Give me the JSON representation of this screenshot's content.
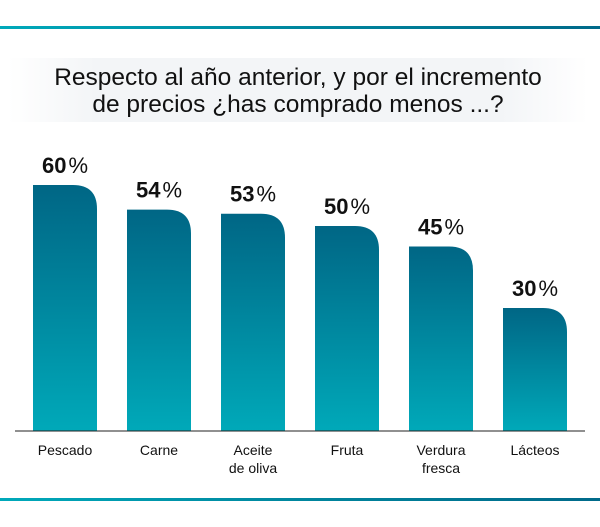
{
  "chart_data": {
    "type": "bar",
    "title": "Respecto al año anterior, y por el incremento\nde precios ¿has comprado menos ...?",
    "categories": [
      "Pescado",
      "Carne",
      "Aceite\nde oliva",
      "Fruta",
      "Verdura\nfresca",
      "Lácteos"
    ],
    "values": [
      60,
      54,
      53,
      50,
      45,
      30
    ],
    "value_labels": [
      "60%",
      "54%",
      "53%",
      "50%",
      "45%",
      "30%"
    ],
    "unit": "%",
    "ylim": [
      0,
      60
    ],
    "grid": false,
    "colors": {
      "bar_top": "#006685",
      "bar_bottom": "#00a9b9",
      "accent_line": "#0090a8"
    }
  }
}
